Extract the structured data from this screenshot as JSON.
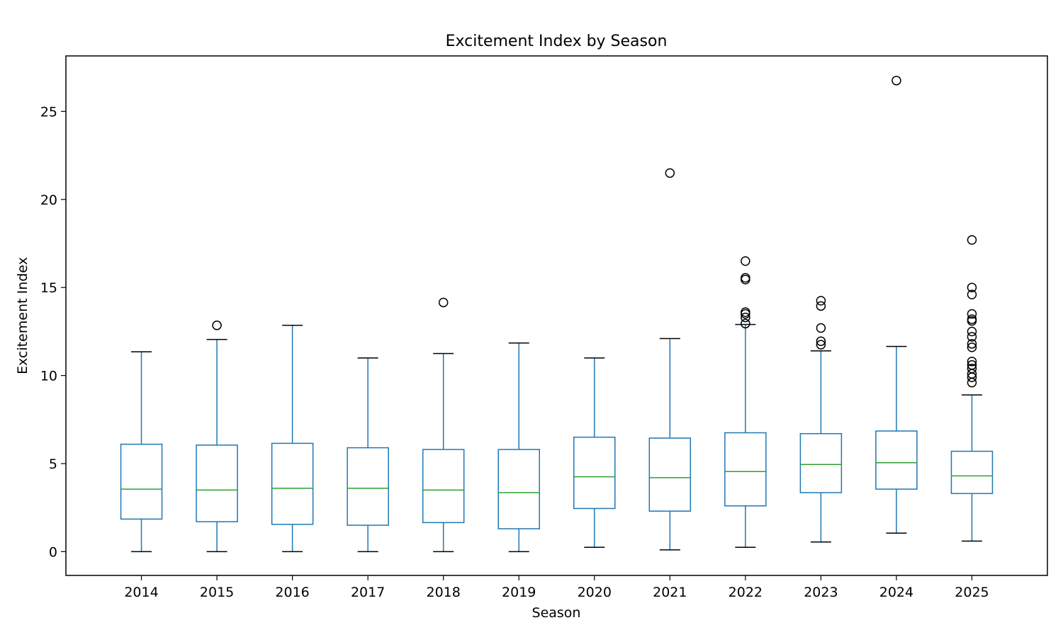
{
  "chart_data": {
    "type": "box",
    "title": "Excitement Index by Season",
    "xlabel": "Season",
    "ylabel": "Excitement Index",
    "ylim": [
      -1.35,
      28.15
    ],
    "yticks": [
      0,
      5,
      10,
      15,
      20,
      25
    ],
    "grid": false,
    "legend": "none",
    "colors": {
      "box": "#1f77b4",
      "median": "#2ca02c",
      "caps": "#000000",
      "fliers": "#000000"
    },
    "categories": [
      "2014",
      "2015",
      "2016",
      "2017",
      "2018",
      "2019",
      "2020",
      "2021",
      "2022",
      "2023",
      "2024",
      "2025"
    ],
    "boxes": [
      {
        "label": "2014",
        "whislo": 0.0,
        "q1": 1.85,
        "med": 3.55,
        "q3": 6.1,
        "whishi": 11.35,
        "fliers": []
      },
      {
        "label": "2015",
        "whislo": 0.0,
        "q1": 1.7,
        "med": 3.5,
        "q3": 6.05,
        "whishi": 12.05,
        "fliers": [
          12.85
        ]
      },
      {
        "label": "2016",
        "whislo": 0.0,
        "q1": 1.55,
        "med": 3.6,
        "q3": 6.15,
        "whishi": 12.85,
        "fliers": []
      },
      {
        "label": "2017",
        "whislo": 0.0,
        "q1": 1.5,
        "med": 3.6,
        "q3": 5.9,
        "whishi": 11.0,
        "fliers": []
      },
      {
        "label": "2018",
        "whislo": 0.0,
        "q1": 1.65,
        "med": 3.5,
        "q3": 5.8,
        "whishi": 11.25,
        "fliers": [
          14.15
        ]
      },
      {
        "label": "2019",
        "whislo": 0.0,
        "q1": 1.3,
        "med": 3.35,
        "q3": 5.8,
        "whishi": 11.85,
        "fliers": []
      },
      {
        "label": "2020",
        "whislo": 0.25,
        "q1": 2.45,
        "med": 4.25,
        "q3": 6.5,
        "whishi": 11.0,
        "fliers": []
      },
      {
        "label": "2021",
        "whislo": 0.1,
        "q1": 2.3,
        "med": 4.2,
        "q3": 6.45,
        "whishi": 12.1,
        "fliers": [
          21.5
        ]
      },
      {
        "label": "2022",
        "whislo": 0.25,
        "q1": 2.6,
        "med": 4.55,
        "q3": 6.75,
        "whishi": 12.9,
        "fliers": [
          12.95,
          13.3,
          13.5,
          13.6,
          15.45,
          15.55,
          16.5
        ]
      },
      {
        "label": "2023",
        "whislo": 0.55,
        "q1": 3.35,
        "med": 4.95,
        "q3": 6.7,
        "whishi": 11.4,
        "fliers": [
          11.75,
          11.95,
          12.7,
          13.95,
          14.25
        ]
      },
      {
        "label": "2024",
        "whislo": 1.05,
        "q1": 3.55,
        "med": 5.05,
        "q3": 6.85,
        "whishi": 11.65,
        "fliers": [
          26.75
        ]
      },
      {
        "label": "2025",
        "whislo": 0.6,
        "q1": 3.3,
        "med": 4.3,
        "q3": 5.7,
        "whishi": 8.9,
        "fliers": [
          9.6,
          9.9,
          10.1,
          10.4,
          10.6,
          10.8,
          11.6,
          11.8,
          12.2,
          12.5,
          13.1,
          13.2,
          13.5,
          14.6,
          15.0,
          17.7
        ]
      }
    ]
  }
}
